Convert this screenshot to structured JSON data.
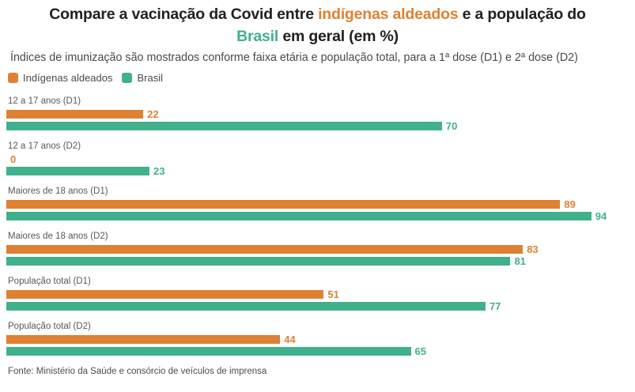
{
  "title": {
    "line1_parts": [
      {
        "text": "Compare a vacinação da Covid entre ",
        "color": "dark"
      },
      {
        "text": "indígenas aldeados",
        "color": "orange"
      },
      {
        "text": " e a população do",
        "color": "dark"
      }
    ],
    "line2_parts": [
      {
        "text": "Brasil",
        "color": "green"
      },
      {
        "text": " em geral (em %)",
        "color": "dark"
      }
    ]
  },
  "subtitle": "Índices de imunização são mostrados conforme faixa etária e população total, para a 1ª dose (D1) e 2ª dose (D2)",
  "legend": [
    {
      "label": "Indígenas aldeados",
      "color": "#DE8133"
    },
    {
      "label": "Brasil",
      "color": "#41B08C"
    }
  ],
  "source": "Fonte: Ministério da Saúde e consórcio de veículos de imprensa",
  "colors": {
    "orange": "#DE8133",
    "green": "#41B08C",
    "title": "#212121",
    "subtitle": "#4a4a4a",
    "category_label": "#595959",
    "source": "#4c4c4c",
    "background": "#ffffff"
  },
  "chart_data": {
    "type": "bar",
    "orientation": "horizontal",
    "title": "Compare a vacinação da Covid entre indígenas aldeados e a população do Brasil em geral (em %)",
    "subtitle": "Índices de imunização são mostrados conforme faixa etária e população total, para a 1ª dose (D1) e 2ª dose (D2)",
    "categories": [
      "12 a 17 anos (D1)",
      "12 a 17 anos (D2)",
      "Maiores de 18 anos (D1)",
      "Maiores de 18 anos (D2)",
      "População total (D1)",
      "População total (D2)"
    ],
    "series": [
      {
        "name": "Indígenas aldeados",
        "color": "#DE8133",
        "values": [
          22,
          0,
          89,
          83,
          51,
          44
        ]
      },
      {
        "name": "Brasil",
        "color": "#41B08C",
        "values": [
          70,
          23,
          94,
          81,
          77,
          65
        ]
      }
    ],
    "xlim": [
      0,
      100
    ],
    "value_labels": true,
    "grid": false,
    "legend_position": "top-left",
    "source": "Fonte: Ministério da Saúde e consórcio de veículos de imprensa"
  }
}
